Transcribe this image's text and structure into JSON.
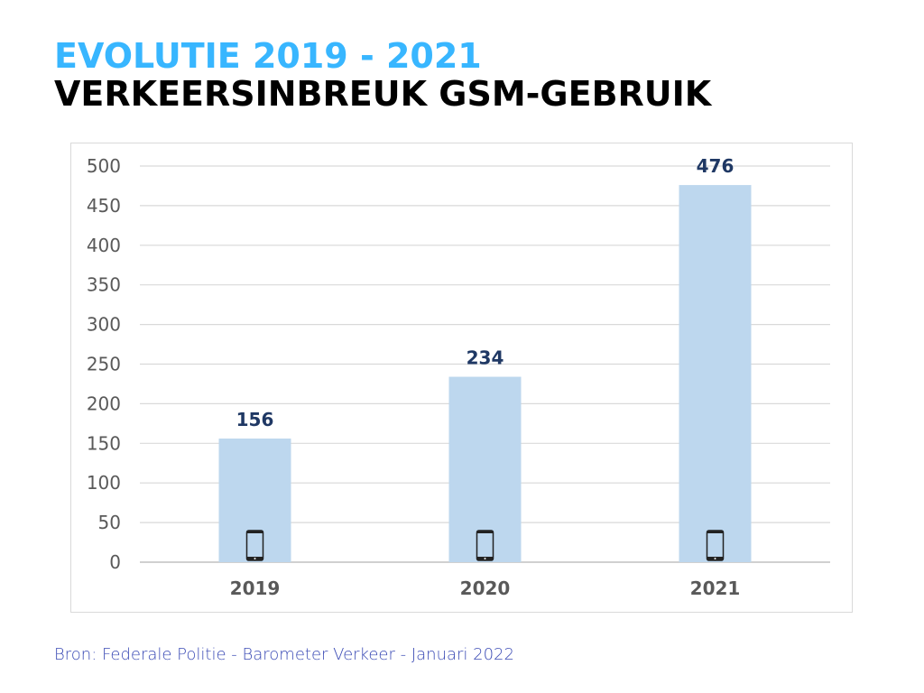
{
  "title": {
    "line1": "EVOLUTIE 2019 - 2021",
    "line2": "VERKEERSINBREUK GSM-GEBRUIK"
  },
  "source": "Bron: Federale Politie - Barometer Verkeer - Januari 2022",
  "colors": {
    "bar": "#bdd7ee",
    "label": "#1f3864",
    "title_accent": "#38b6ff"
  },
  "chart_data": {
    "type": "bar",
    "categories": [
      "2019",
      "2020",
      "2021"
    ],
    "values": [
      156,
      234,
      476
    ],
    "ylim": [
      0,
      500
    ],
    "yticks": [
      0,
      50,
      100,
      150,
      200,
      250,
      300,
      350,
      400,
      450,
      500
    ],
    "grid": true,
    "bar_icon": "smartphone-icon",
    "title": "",
    "xlabel": "",
    "ylabel": ""
  }
}
